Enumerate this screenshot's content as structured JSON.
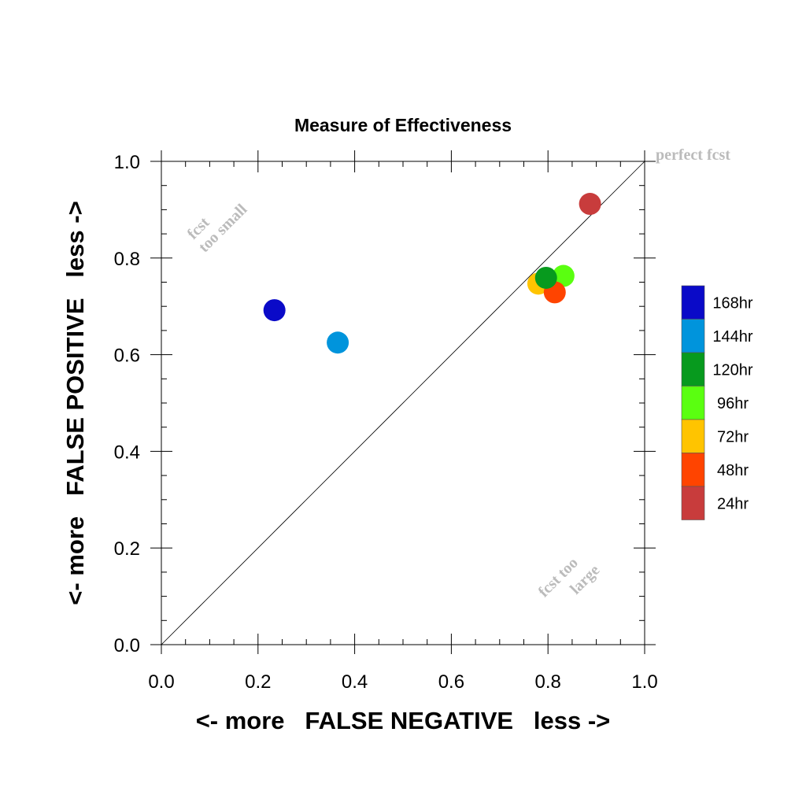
{
  "chart_data": {
    "type": "scatter",
    "title": "Measure of Effectiveness",
    "xlabel": "<- more   FALSE NEGATIVE   less ->",
    "ylabel": "<- more   FALSE POSITIVE   less ->",
    "xlim": [
      0.0,
      1.0
    ],
    "ylim": [
      0.0,
      1.0
    ],
    "xticks": [
      "0.0",
      "0.2",
      "0.4",
      "0.6",
      "0.8",
      "1.0"
    ],
    "yticks": [
      "0.0",
      "0.2",
      "0.4",
      "0.6",
      "0.8",
      "1.0"
    ],
    "grid": false,
    "reference_line": "y = x",
    "legend_position": "right",
    "annotations": {
      "perfect": "perfect fcst",
      "small_line1": "fcst",
      "small_line2": "too small",
      "large_line1": "fcst too",
      "large_line2": "large"
    },
    "series": [
      {
        "name": "168hr",
        "color": "#0A0AC8",
        "x": 0.234,
        "y": 0.692
      },
      {
        "name": "144hr",
        "color": "#0094DC",
        "x": 0.365,
        "y": 0.625
      },
      {
        "name": "120hr",
        "color": "#079A1E",
        "x": 0.796,
        "y": 0.759
      },
      {
        "name": "96hr",
        "color": "#5AFF10",
        "x": 0.832,
        "y": 0.763
      },
      {
        "name": "72hr",
        "color": "#FFC400",
        "x": 0.78,
        "y": 0.747
      },
      {
        "name": "48hr",
        "color": "#FF4400",
        "x": 0.814,
        "y": 0.729
      },
      {
        "name": "24hr",
        "color": "#C83C3C",
        "x": 0.887,
        "y": 0.912
      }
    ]
  }
}
